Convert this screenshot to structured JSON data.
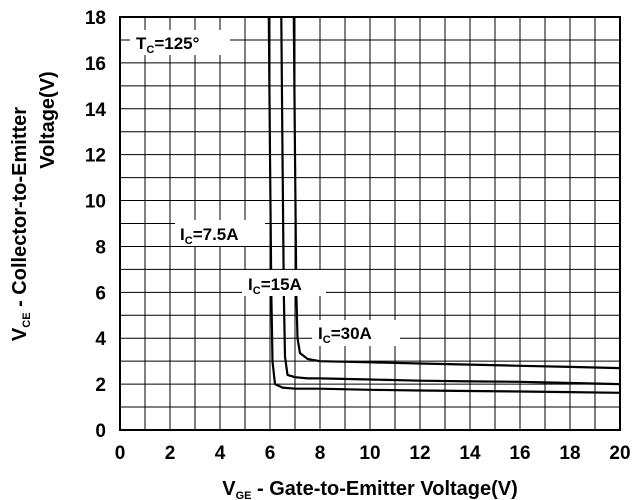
{
  "chart_data": {
    "type": "line",
    "xlabel": {
      "main": "V",
      "sub": "GE",
      "rest": " - Gate-to-Emitter Voltage(V)"
    },
    "ylabel_line1": {
      "main": "V",
      "sub": "CE",
      "rest": " - Collector-to-Emitter"
    },
    "ylabel_line2": "Voltage(V)",
    "xlim": [
      0,
      20
    ],
    "ylim": [
      0,
      18
    ],
    "xticks": [
      0,
      2,
      4,
      6,
      8,
      10,
      12,
      14,
      16,
      18,
      20
    ],
    "yticks": [
      0,
      2,
      4,
      6,
      8,
      10,
      12,
      14,
      16,
      18
    ],
    "grid": true,
    "condition": {
      "main": "T",
      "sub": "C",
      "rest": "=125°"
    },
    "series": [
      {
        "name": {
          "main": "I",
          "sub": "C",
          "rest": "=7.5A"
        },
        "x": [
          5.95,
          6.0,
          6.05,
          6.1,
          6.2,
          6.5,
          7,
          8,
          10,
          12,
          14,
          16,
          18,
          20
        ],
        "y": [
          18,
          12,
          6,
          3.0,
          2.0,
          1.85,
          1.8,
          1.8,
          1.75,
          1.72,
          1.7,
          1.68,
          1.65,
          1.62
        ]
      },
      {
        "name": {
          "main": "I",
          "sub": "C",
          "rest": "=15A"
        },
        "x": [
          6.45,
          6.5,
          6.55,
          6.6,
          6.7,
          7.0,
          7.5,
          8,
          10,
          12,
          14,
          16,
          18,
          20
        ],
        "y": [
          18,
          12,
          6,
          3.2,
          2.4,
          2.3,
          2.25,
          2.25,
          2.2,
          2.15,
          2.12,
          2.1,
          2.05,
          2.0
        ]
      },
      {
        "name": {
          "main": "I",
          "sub": "C",
          "rest": "=30A"
        },
        "x": [
          6.95,
          7.0,
          7.05,
          7.1,
          7.2,
          7.5,
          8,
          10,
          12,
          14,
          16,
          18,
          20
        ],
        "y": [
          18,
          12,
          6,
          4.0,
          3.35,
          3.1,
          3.0,
          2.95,
          2.9,
          2.85,
          2.8,
          2.75,
          2.7
        ]
      }
    ]
  }
}
